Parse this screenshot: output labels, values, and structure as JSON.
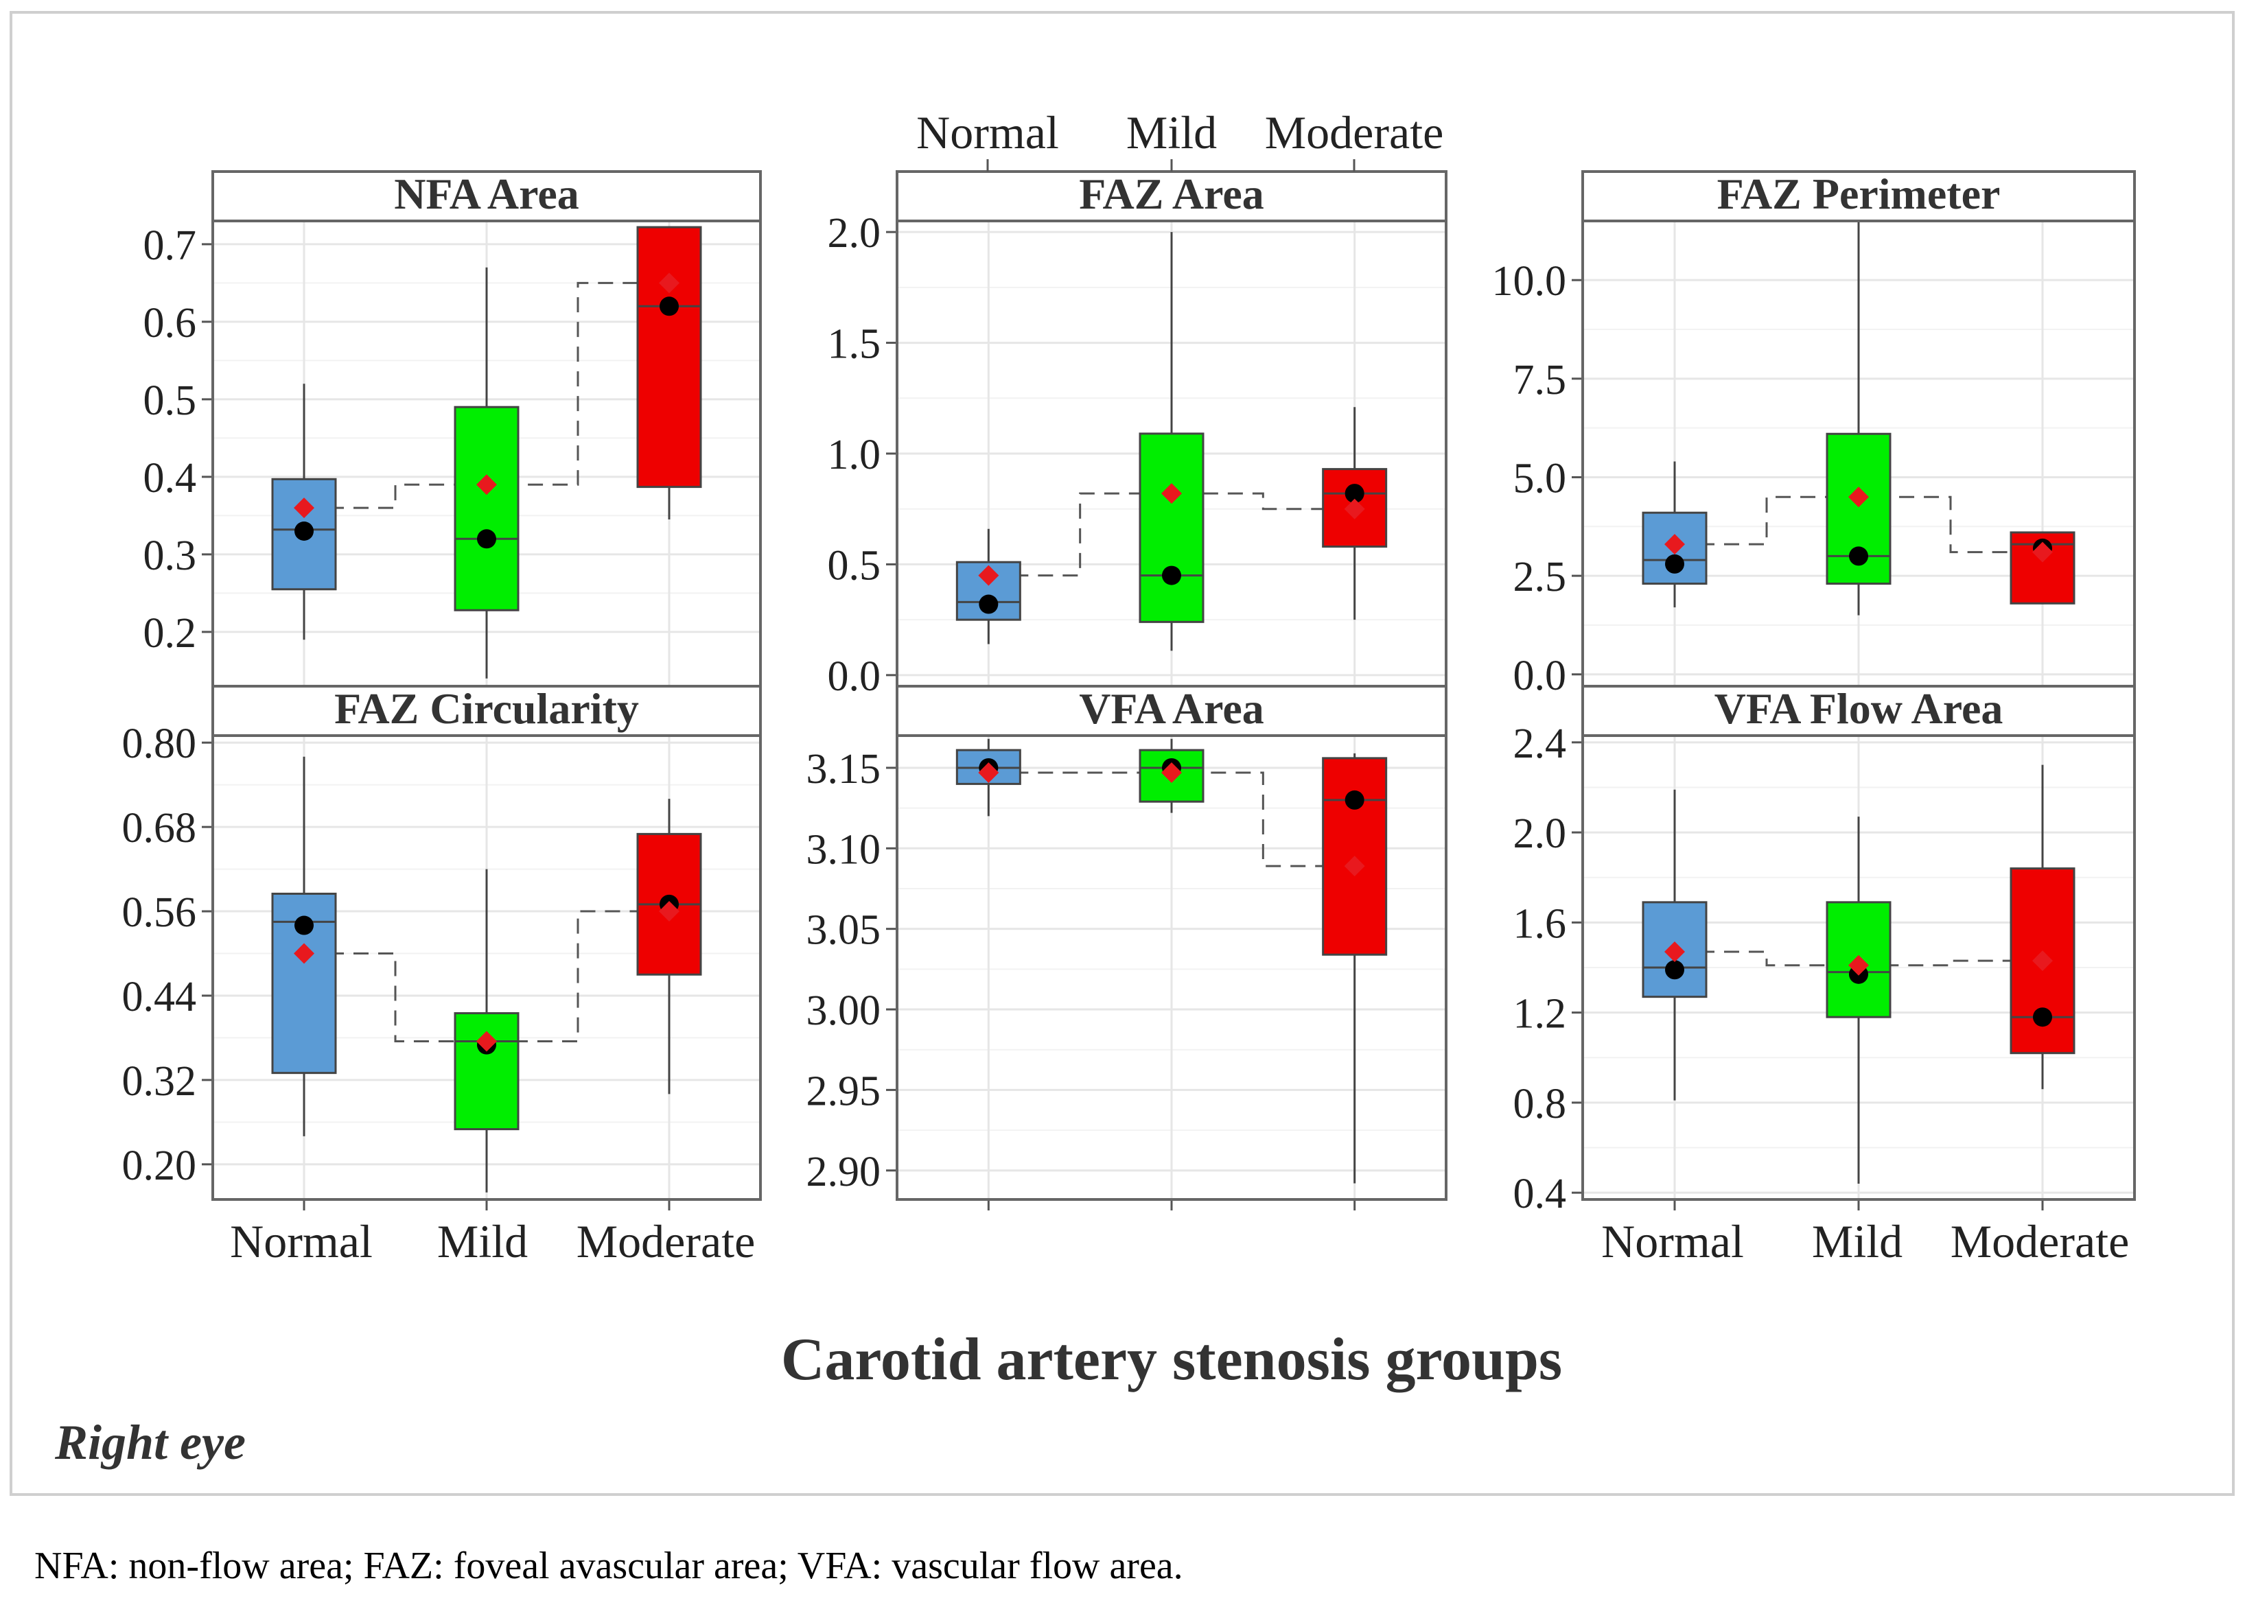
{
  "figure": {
    "xlabel": "Carotid artery stenosis groups",
    "eye_label": "Right eye",
    "caption": "NFA: non-flow area; FAZ: foveal avascular area; VFA: vascular flow area."
  },
  "colors": {
    "normal": "#5b9bd5",
    "mild": "#00ee00",
    "moderate": "#ee0000",
    "mean_marker": "#e8191e",
    "median_marker": "#000000"
  },
  "chart_data": [
    {
      "type": "box",
      "title": "NFA Area",
      "categories": [
        "Normal",
        "Mild",
        "Moderate"
      ],
      "ylim": [
        0.13,
        0.73
      ],
      "yticks": [
        "0.2",
        "0.3",
        "0.4",
        "0.5",
        "0.6",
        "0.7"
      ],
      "ytick_values": [
        0.2,
        0.3,
        0.4,
        0.5,
        0.6,
        0.7
      ],
      "boxes": [
        {
          "group": "Normal",
          "min": 0.19,
          "q1": 0.255,
          "median": 0.332,
          "q3": 0.397,
          "max": 0.52,
          "mean": 0.36,
          "marker": 0.33
        },
        {
          "group": "Mild",
          "min": 0.14,
          "q1": 0.228,
          "median": 0.32,
          "q3": 0.49,
          "max": 0.67,
          "mean": 0.39,
          "marker": 0.32
        },
        {
          "group": "Moderate",
          "min": 0.345,
          "q1": 0.387,
          "median": 0.62,
          "q3": 0.722,
          "max": 0.722,
          "mean": 0.65,
          "marker": 0.62
        }
      ]
    },
    {
      "type": "box",
      "title": "FAZ Area",
      "categories": [
        "Normal",
        "Mild",
        "Moderate"
      ],
      "ylim": [
        -0.05,
        2.05
      ],
      "yticks": [
        "0.0",
        "0.5",
        "1.0",
        "1.5",
        "2.0"
      ],
      "ytick_values": [
        0.0,
        0.5,
        1.0,
        1.5,
        2.0
      ],
      "boxes": [
        {
          "group": "Normal",
          "min": 0.14,
          "q1": 0.25,
          "median": 0.33,
          "q3": 0.51,
          "max": 0.66,
          "mean": 0.45,
          "marker": 0.32
        },
        {
          "group": "Mild",
          "min": 0.11,
          "q1": 0.24,
          "median": 0.45,
          "q3": 1.09,
          "max": 2.0,
          "mean": 0.82,
          "marker": 0.45
        },
        {
          "group": "Moderate",
          "min": 0.25,
          "q1": 0.58,
          "median": 0.82,
          "q3": 0.93,
          "max": 1.21,
          "mean": 0.75,
          "marker": 0.82
        }
      ]
    },
    {
      "type": "box",
      "title": "FAZ Perimeter",
      "categories": [
        "Normal",
        "Mild",
        "Moderate"
      ],
      "ylim": [
        -0.3,
        11.5
      ],
      "yticks": [
        "0.0",
        "2.5",
        "5.0",
        "7.5",
        "10.0"
      ],
      "ytick_values": [
        0.0,
        2.5,
        5.0,
        7.5,
        10.0
      ],
      "boxes": [
        {
          "group": "Normal",
          "min": 1.7,
          "q1": 2.3,
          "median": 2.9,
          "q3": 4.1,
          "max": 5.4,
          "mean": 3.3,
          "marker": 2.8
        },
        {
          "group": "Mild",
          "min": 1.5,
          "q1": 2.3,
          "median": 3.0,
          "q3": 6.1,
          "max": 11.5,
          "mean": 4.5,
          "marker": 3.0
        },
        {
          "group": "Moderate",
          "min": 1.8,
          "q1": 1.8,
          "median": 3.3,
          "q3": 3.6,
          "max": 3.6,
          "mean": 3.1,
          "marker": 3.2
        }
      ]
    },
    {
      "type": "box",
      "title": "FAZ Circularity",
      "categories": [
        "Normal",
        "Mild",
        "Moderate"
      ],
      "ylim": [
        0.15,
        0.81
      ],
      "yticks": [
        "0.20",
        "0.32",
        "0.44",
        "0.56",
        "0.68",
        "0.80"
      ],
      "ytick_values": [
        0.2,
        0.32,
        0.44,
        0.56,
        0.68,
        0.8
      ],
      "boxes": [
        {
          "group": "Normal",
          "min": 0.24,
          "q1": 0.33,
          "median": 0.545,
          "q3": 0.585,
          "max": 0.78,
          "mean": 0.5,
          "marker": 0.54
        },
        {
          "group": "Mild",
          "min": 0.16,
          "q1": 0.25,
          "median": 0.375,
          "q3": 0.415,
          "max": 0.62,
          "mean": 0.375,
          "marker": 0.37
        },
        {
          "group": "Moderate",
          "min": 0.3,
          "q1": 0.47,
          "median": 0.57,
          "q3": 0.67,
          "max": 0.72,
          "mean": 0.56,
          "marker": 0.57
        }
      ]
    },
    {
      "type": "box",
      "title": "VFA Area",
      "categories": [
        "Normal",
        "Mild",
        "Moderate"
      ],
      "ylim": [
        2.882,
        3.17
      ],
      "yticks": [
        "2.90",
        "2.95",
        "3.00",
        "3.05",
        "3.10",
        "3.15"
      ],
      "ytick_values": [
        2.9,
        2.95,
        3.0,
        3.05,
        3.1,
        3.15
      ],
      "boxes": [
        {
          "group": "Normal",
          "min": 3.12,
          "q1": 3.14,
          "median": 3.15,
          "q3": 3.161,
          "max": 3.168,
          "mean": 3.147,
          "marker": 3.15
        },
        {
          "group": "Mild",
          "min": 3.122,
          "q1": 3.129,
          "median": 3.15,
          "q3": 3.161,
          "max": 3.168,
          "mean": 3.147,
          "marker": 3.15
        },
        {
          "group": "Moderate",
          "min": 2.892,
          "q1": 3.034,
          "median": 3.13,
          "q3": 3.156,
          "max": 3.159,
          "mean": 3.089,
          "marker": 3.13
        }
      ]
    },
    {
      "type": "box",
      "title": "VFA Flow Area",
      "categories": [
        "Normal",
        "Mild",
        "Moderate"
      ],
      "ylim": [
        0.37,
        2.43
      ],
      "yticks": [
        "0.4",
        "0.8",
        "1.2",
        "1.6",
        "2.0",
        "2.4"
      ],
      "ytick_values": [
        0.4,
        0.8,
        1.2,
        1.6,
        2.0,
        2.4
      ],
      "boxes": [
        {
          "group": "Normal",
          "min": 0.81,
          "q1": 1.27,
          "median": 1.4,
          "q3": 1.69,
          "max": 2.19,
          "mean": 1.47,
          "marker": 1.39
        },
        {
          "group": "Mild",
          "min": 0.44,
          "q1": 1.18,
          "median": 1.38,
          "q3": 1.69,
          "max": 2.07,
          "mean": 1.41,
          "marker": 1.37
        },
        {
          "group": "Moderate",
          "min": 0.86,
          "q1": 1.02,
          "median": 1.18,
          "q3": 1.84,
          "max": 2.3,
          "mean": 1.43,
          "marker": 1.18
        }
      ]
    }
  ],
  "axis_labels": {
    "bottom_left": [
      "Normal",
      "Mild",
      "Moderate"
    ],
    "top_middle": [
      "Normal",
      "Mild",
      "Moderate"
    ],
    "bottom_right": [
      "Normal",
      "Mild",
      "Moderate"
    ]
  }
}
